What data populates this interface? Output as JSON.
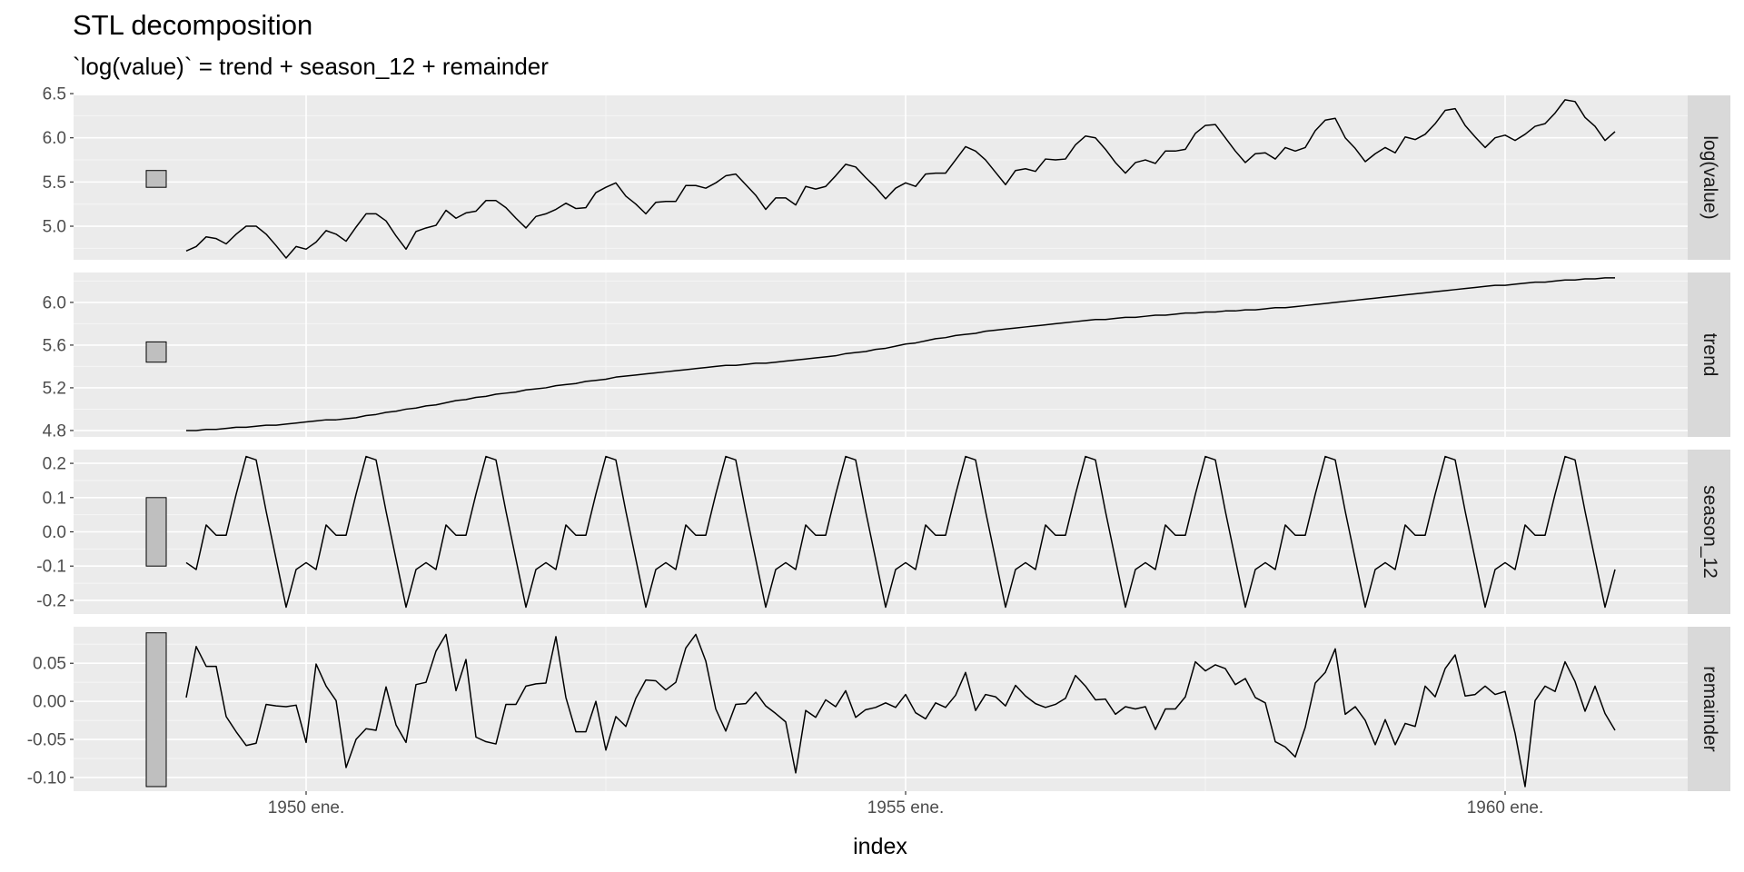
{
  "chart_data": {
    "type": "line",
    "title": "STL decomposition",
    "subtitle": "`log(value)` = trend + season_12 + remainder",
    "xlabel": "index",
    "x_start": "1949 ene.",
    "x_end": "1960 dic.",
    "x_ticks": [
      "1950 ene.",
      "1955 ene.",
      "1960 ene."
    ],
    "grid": true,
    "panels": [
      {
        "name": "log(value)",
        "ylim": [
          4.62,
          6.48
        ],
        "y_ticks": [
          5.0,
          5.5,
          6.0,
          6.5
        ],
        "y_tick_labels": [
          "5.0",
          "5.5",
          "6.0",
          "6.5"
        ],
        "scale_bar": [
          5.44,
          5.63
        ],
        "values": [
          4.72,
          4.77,
          4.88,
          4.86,
          4.8,
          4.91,
          5.0,
          5.0,
          4.91,
          4.78,
          4.64,
          4.77,
          4.74,
          4.82,
          4.95,
          4.91,
          4.83,
          4.99,
          5.14,
          5.14,
          5.06,
          4.89,
          4.74,
          4.94,
          4.98,
          5.01,
          5.18,
          5.09,
          5.15,
          5.17,
          5.29,
          5.29,
          5.21,
          5.09,
          4.98,
          5.11,
          5.14,
          5.19,
          5.26,
          5.2,
          5.21,
          5.38,
          5.44,
          5.49,
          5.34,
          5.25,
          5.14,
          5.27,
          5.28,
          5.28,
          5.46,
          5.46,
          5.43,
          5.49,
          5.57,
          5.59,
          5.47,
          5.35,
          5.19,
          5.32,
          5.32,
          5.24,
          5.45,
          5.42,
          5.45,
          5.57,
          5.7,
          5.67,
          5.55,
          5.44,
          5.31,
          5.43,
          5.49,
          5.45,
          5.59,
          5.6,
          5.6,
          5.75,
          5.9,
          5.85,
          5.75,
          5.61,
          5.47,
          5.63,
          5.65,
          5.62,
          5.76,
          5.75,
          5.76,
          5.92,
          6.02,
          6.0,
          5.87,
          5.72,
          5.6,
          5.72,
          5.75,
          5.71,
          5.85,
          5.85,
          5.87,
          6.05,
          6.14,
          6.15,
          6.0,
          5.85,
          5.72,
          5.82,
          5.83,
          5.76,
          5.89,
          5.85,
          5.89,
          6.08,
          6.2,
          6.22,
          6.0,
          5.88,
          5.73,
          5.82,
          5.89,
          5.83,
          6.01,
          5.98,
          6.04,
          6.16,
          6.31,
          6.33,
          6.14,
          6.01,
          5.89,
          6.0,
          6.03,
          5.97,
          6.04,
          6.13,
          6.16,
          6.28,
          6.43,
          6.41,
          6.23,
          6.13,
          5.97,
          6.07
        ]
      },
      {
        "name": "trend",
        "ylim": [
          4.74,
          6.28
        ],
        "y_ticks": [
          4.8,
          5.2,
          5.6,
          6.0
        ],
        "y_tick_labels": [
          "4.8",
          "5.2",
          "5.6",
          "6.0"
        ],
        "scale_bar": [
          5.44,
          5.63
        ],
        "values": [
          4.8,
          4.8,
          4.81,
          4.81,
          4.82,
          4.83,
          4.83,
          4.84,
          4.85,
          4.85,
          4.86,
          4.87,
          4.88,
          4.89,
          4.9,
          4.9,
          4.91,
          4.92,
          4.94,
          4.95,
          4.97,
          4.98,
          5.0,
          5.01,
          5.03,
          5.04,
          5.06,
          5.08,
          5.09,
          5.11,
          5.12,
          5.14,
          5.15,
          5.16,
          5.18,
          5.19,
          5.2,
          5.22,
          5.23,
          5.24,
          5.26,
          5.27,
          5.28,
          5.3,
          5.31,
          5.32,
          5.33,
          5.34,
          5.35,
          5.36,
          5.37,
          5.38,
          5.39,
          5.4,
          5.41,
          5.41,
          5.42,
          5.43,
          5.43,
          5.44,
          5.45,
          5.46,
          5.47,
          5.48,
          5.49,
          5.5,
          5.52,
          5.53,
          5.54,
          5.56,
          5.57,
          5.59,
          5.61,
          5.62,
          5.64,
          5.66,
          5.67,
          5.69,
          5.7,
          5.71,
          5.73,
          5.74,
          5.75,
          5.76,
          5.77,
          5.78,
          5.79,
          5.8,
          5.81,
          5.82,
          5.83,
          5.84,
          5.84,
          5.85,
          5.86,
          5.86,
          5.87,
          5.88,
          5.88,
          5.89,
          5.9,
          5.9,
          5.91,
          5.91,
          5.92,
          5.92,
          5.93,
          5.93,
          5.94,
          5.95,
          5.95,
          5.96,
          5.97,
          5.98,
          5.99,
          6.0,
          6.01,
          6.02,
          6.03,
          6.04,
          6.05,
          6.06,
          6.07,
          6.08,
          6.09,
          6.1,
          6.11,
          6.12,
          6.13,
          6.14,
          6.15,
          6.16,
          6.16,
          6.17,
          6.18,
          6.19,
          6.19,
          6.2,
          6.21,
          6.21,
          6.22,
          6.22,
          6.23,
          6.23
        ]
      },
      {
        "name": "season_12",
        "ylim": [
          -0.24,
          0.24
        ],
        "y_ticks": [
          -0.2,
          -0.1,
          0.0,
          0.1,
          0.2
        ],
        "y_tick_labels": [
          "-0.2",
          "-0.1",
          "0.0",
          "0.1",
          "0.2"
        ],
        "scale_bar": [
          -0.1,
          0.1
        ],
        "values": [
          -0.09,
          -0.11,
          0.02,
          -0.01,
          -0.01,
          0.11,
          0.22,
          0.21,
          0.06,
          -0.08,
          -0.22,
          -0.11,
          -0.09,
          -0.11,
          0.02,
          -0.01,
          -0.01,
          0.11,
          0.22,
          0.21,
          0.06,
          -0.08,
          -0.22,
          -0.11,
          -0.09,
          -0.11,
          0.02,
          -0.01,
          -0.01,
          0.11,
          0.22,
          0.21,
          0.06,
          -0.08,
          -0.22,
          -0.11,
          -0.09,
          -0.11,
          0.02,
          -0.01,
          -0.01,
          0.11,
          0.22,
          0.21,
          0.06,
          -0.08,
          -0.22,
          -0.11,
          -0.09,
          -0.11,
          0.02,
          -0.01,
          -0.01,
          0.11,
          0.22,
          0.21,
          0.06,
          -0.08,
          -0.22,
          -0.11,
          -0.09,
          -0.11,
          0.02,
          -0.01,
          -0.01,
          0.11,
          0.22,
          0.21,
          0.06,
          -0.08,
          -0.22,
          -0.11,
          -0.09,
          -0.11,
          0.02,
          -0.01,
          -0.01,
          0.11,
          0.22,
          0.21,
          0.06,
          -0.08,
          -0.22,
          -0.11,
          -0.09,
          -0.11,
          0.02,
          -0.01,
          -0.01,
          0.11,
          0.22,
          0.21,
          0.06,
          -0.08,
          -0.22,
          -0.11,
          -0.09,
          -0.11,
          0.02,
          -0.01,
          -0.01,
          0.11,
          0.22,
          0.21,
          0.06,
          -0.08,
          -0.22,
          -0.11,
          -0.09,
          -0.11,
          0.02,
          -0.01,
          -0.01,
          0.11,
          0.22,
          0.21,
          0.06,
          -0.08,
          -0.22,
          -0.11,
          -0.09,
          -0.11,
          0.02,
          -0.01,
          -0.01,
          0.11,
          0.22,
          0.21,
          0.06,
          -0.08,
          -0.22,
          -0.11,
          -0.09,
          -0.11,
          0.02,
          -0.01,
          -0.01,
          0.11,
          0.22,
          0.21,
          0.06,
          -0.08,
          -0.22,
          -0.11
        ]
      },
      {
        "name": "remainder",
        "ylim": [
          -0.118,
          0.098
        ],
        "y_ticks": [
          -0.1,
          -0.05,
          0.0,
          0.05
        ],
        "y_tick_labels": [
          "-0.10",
          "-0.05",
          "0.00",
          "0.05"
        ],
        "scale_bar": [
          -0.112,
          0.09
        ],
        "values": [
          0.005,
          0.072,
          0.046,
          0.046,
          -0.02,
          -0.04,
          -0.058,
          -0.055,
          -0.004,
          -0.006,
          -0.007,
          -0.005,
          -0.054,
          0.049,
          0.02,
          0.001,
          -0.087,
          -0.05,
          -0.036,
          -0.038,
          0.019,
          -0.031,
          -0.054,
          0.022,
          0.025,
          0.066,
          0.088,
          0.014,
          0.055,
          -0.047,
          -0.053,
          -0.056,
          -0.004,
          -0.004,
          0.02,
          0.023,
          0.024,
          0.085,
          0.005,
          -0.04,
          -0.04,
          0.0,
          -0.064,
          -0.02,
          -0.033,
          0.004,
          0.028,
          0.027,
          0.015,
          0.025,
          0.07,
          0.088,
          0.053,
          -0.01,
          -0.039,
          -0.004,
          -0.003,
          0.012,
          -0.006,
          -0.016,
          -0.027,
          -0.094,
          -0.012,
          -0.021,
          0.002,
          -0.007,
          0.014,
          -0.021,
          -0.011,
          -0.008,
          -0.002,
          -0.008,
          0.009,
          -0.015,
          -0.023,
          -0.002,
          -0.008,
          0.008,
          0.038,
          -0.012,
          0.009,
          0.006,
          -0.006,
          0.021,
          0.007,
          -0.003,
          -0.008,
          -0.004,
          0.004,
          0.034,
          0.02,
          0.002,
          0.003,
          -0.017,
          -0.007,
          -0.01,
          -0.007,
          -0.037,
          -0.01,
          -0.01,
          0.006,
          0.052,
          0.04,
          0.048,
          0.043,
          0.022,
          0.03,
          0.005,
          -0.002,
          -0.053,
          -0.06,
          -0.073,
          -0.034,
          0.024,
          0.038,
          0.069,
          -0.017,
          -0.007,
          -0.025,
          -0.057,
          -0.024,
          -0.057,
          -0.029,
          -0.033,
          0.02,
          0.006,
          0.043,
          0.061,
          0.007,
          0.009,
          0.02,
          0.009,
          0.013,
          -0.042,
          -0.112,
          0.001,
          0.02,
          0.013,
          0.052,
          0.026,
          -0.013,
          0.02,
          -0.016,
          -0.038
        ]
      }
    ]
  }
}
